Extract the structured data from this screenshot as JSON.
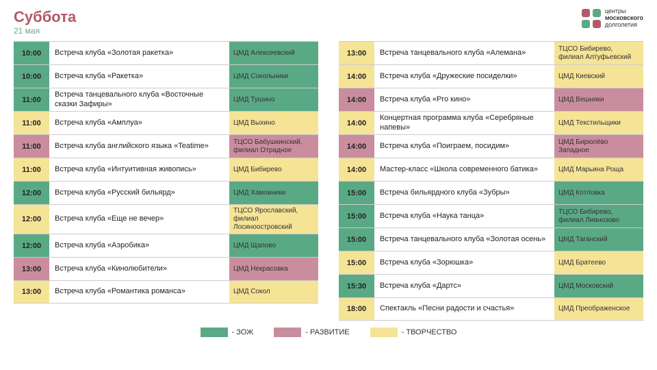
{
  "header": {
    "day": "Суббота",
    "date": "21 мая",
    "logo_line1": "центры",
    "logo_line2": "московского",
    "logo_line3": "долголетия"
  },
  "colors": {
    "green": "#5aa985",
    "pink": "#c98d9e",
    "yellow": "#f5e396",
    "title": "#b35a6a"
  },
  "legend": [
    {
      "color": "#5aa985",
      "label": "- ЗОЖ"
    },
    {
      "color": "#c98d9e",
      "label": "- РАЗВИТИЕ"
    },
    {
      "color": "#f5e396",
      "label": "- ТВОРЧЕСТВО"
    }
  ],
  "left": [
    {
      "time": "10:00",
      "cat": "green",
      "event": "Встреча клуба «Золотая ракетка»",
      "loc": "ЦМД Алексеевский"
    },
    {
      "time": "10:00",
      "cat": "green",
      "event": "Встреча клуба «Ракетка»",
      "loc": "ЦМД Сокольники"
    },
    {
      "time": "11:00",
      "cat": "green",
      "event": "Встреча танцевального клуба «Восточные сказки Зафиры»",
      "loc": "ЦМД Тушино"
    },
    {
      "time": "11:00",
      "cat": "yellow",
      "event": "Встреча клуба «Амплуа»",
      "loc": "ЦМД Выхино"
    },
    {
      "time": "11:00",
      "cat": "pink",
      "event": "Встреча клуба английского языка «Teatime»",
      "loc": "ТЦСО Бабушкинский, филиал Отрадное"
    },
    {
      "time": "11:00",
      "cat": "yellow",
      "event": "Встреча клуба «Интуитивная живопись»",
      "loc": "ЦМД Бибирево"
    },
    {
      "time": "12:00",
      "cat": "green",
      "event": "Встреча клуба «Русский бильярд»",
      "loc": "ЦМД Хамовники"
    },
    {
      "time": "12:00",
      "cat": "yellow",
      "event": "Встреча клуба «Еще не вечер»",
      "loc": "ТЦСО Ярославский, филиал Лосиноостровский"
    },
    {
      "time": "12:00",
      "cat": "green",
      "event": "Встреча клуба «Аэробика»",
      "loc": "ЦМД Щапово"
    },
    {
      "time": "13:00",
      "cat": "pink",
      "event": "Встреча клуба «Кинолюбители»",
      "loc": "ЦМД Некрасовка"
    },
    {
      "time": "13:00",
      "cat": "yellow",
      "event": "Встреча клуба «Романтика романса»",
      "loc": "ЦМД Сокол"
    }
  ],
  "right": [
    {
      "time": "13:00",
      "cat": "yellow",
      "event": "Встреча танцевального клуба «Алемана»",
      "loc": "ТЦСО Бибирево, филиал Алтуфьевский"
    },
    {
      "time": "14:00",
      "cat": "yellow",
      "event": "Встреча клуба «Дружеские посиделки»",
      "loc": "ЦМД Киевский"
    },
    {
      "time": "14:00",
      "cat": "pink",
      "event": "Встреча клуба «Pro кино»",
      "loc": "ЦМД Вешняки"
    },
    {
      "time": "14:00",
      "cat": "yellow",
      "event": "Концертная программа клуба «Серебряные напевы»",
      "loc": "ЦМД Текстильщики"
    },
    {
      "time": "14:00",
      "cat": "pink",
      "event": "Встреча клуба «Поиграем, посидим»",
      "loc": "ЦМД Бирюлёво Западное"
    },
    {
      "time": "14:00",
      "cat": "yellow",
      "event": "Мастер-класс «Школа современного батика»",
      "loc": "ЦМД Марьина Роща"
    },
    {
      "time": "15:00",
      "cat": "green",
      "event": "Встреча бильярдного клуба «Зубры»",
      "loc": "ЦМД Котловка"
    },
    {
      "time": "15:00",
      "cat": "green",
      "event": "Встреча клуба «Наука танца»",
      "loc": "ТЦСО Бибирево, филиал Лианозово"
    },
    {
      "time": "15:00",
      "cat": "green",
      "event": "Встреча танцевального клуба «Золотая осень»",
      "loc": "ЦМД Таганский"
    },
    {
      "time": "15:00",
      "cat": "yellow",
      "event": "Встреча клуба «Зорюшка»",
      "loc": "ЦМД Братеево"
    },
    {
      "time": "15:30",
      "cat": "green",
      "event": "Встреча клуба «Дартс»",
      "loc": "ЦМД Московский"
    },
    {
      "time": "18:00",
      "cat": "yellow",
      "event": "Спектакль «Песни радости и счастья»",
      "loc": "ЦМД Преображенское"
    }
  ]
}
